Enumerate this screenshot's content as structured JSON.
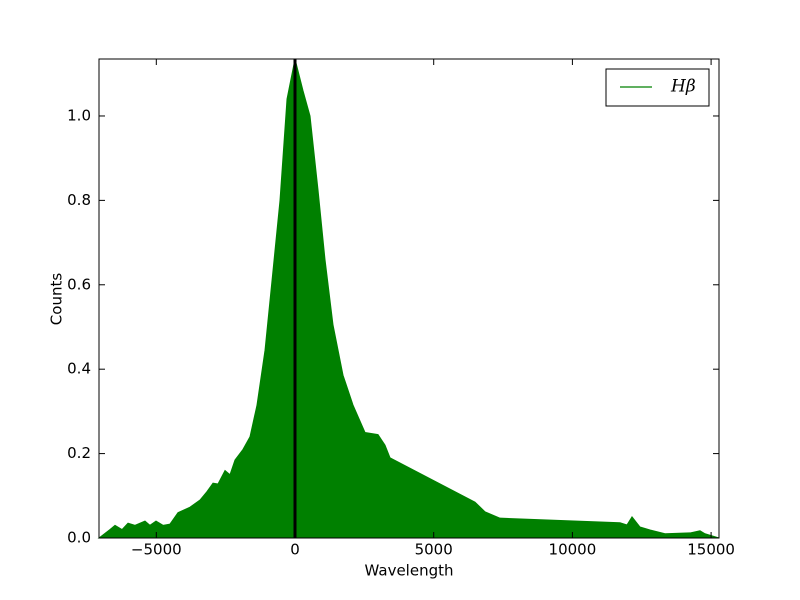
{
  "chart_data": {
    "type": "area",
    "x_label": "Wavelength",
    "y_label": "Counts",
    "x": [
      -7066,
      -6669,
      -6489,
      -6236,
      -6020,
      -5768,
      -5408,
      -5228,
      -5011,
      -4758,
      -4506,
      -4218,
      -3785,
      -3425,
      -3172,
      -2956,
      -2776,
      -2523,
      -2343,
      -2163,
      -1875,
      -1622,
      -1370,
      -1081,
      -829,
      -541,
      -288,
      0,
      288,
      541,
      829,
      1081,
      1370,
      1730,
      2091,
      2523,
      2992,
      3244,
      3425,
      6489,
      6850,
      7390,
      11716,
      11969,
      12149,
      12437,
      12798,
      13339,
      14240,
      14600,
      14780,
      15285
    ],
    "series": [
      {
        "name": "Hβ",
        "color": "#008000",
        "values": [
          0,
          0.02,
          0.03,
          0.02,
          0.035,
          0.03,
          0.04,
          0.03,
          0.04,
          0.03,
          0.033,
          0.06,
          0.073,
          0.09,
          0.11,
          0.13,
          0.128,
          0.16,
          0.15,
          0.185,
          0.21,
          0.24,
          0.315,
          0.445,
          0.61,
          0.8,
          1.04,
          1.135,
          1.06,
          1.0,
          0.825,
          0.66,
          0.505,
          0.386,
          0.315,
          0.25,
          0.245,
          0.22,
          0.19,
          0.085,
          0.062,
          0.047,
          0.036,
          0.031,
          0.05,
          0.026,
          0.019,
          0.01,
          0.012,
          0.017,
          0.01,
          0
        ]
      }
    ],
    "vline_x": 0,
    "vline_color": "#000000",
    "xlim": [
      -7066,
      15285
    ],
    "ylim": [
      0,
      1.135
    ],
    "xticks": [
      {
        "value": -5000,
        "label": "−5000"
      },
      0,
      5000,
      10000,
      15000
    ],
    "yticks": [
      {
        "value": 0,
        "label": "0.0"
      },
      {
        "value": 0.2,
        "label": "0.2"
      },
      {
        "value": 0.4,
        "label": "0.4"
      },
      {
        "value": 0.6,
        "label": "0.6"
      },
      {
        "value": 0.8,
        "label": "0.8"
      },
      {
        "value": 1.0,
        "label": "1.0"
      }
    ],
    "grid": false,
    "legend_position": "upper right"
  }
}
